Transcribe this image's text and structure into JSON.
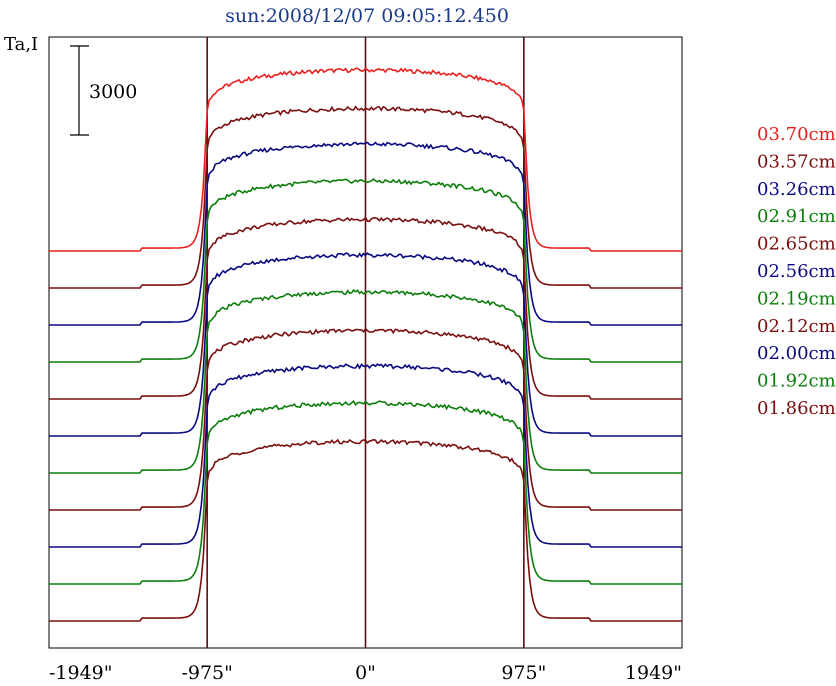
{
  "chart_data": {
    "type": "line",
    "title": "sun:2008/12/07 09:05:12.450",
    "ylabel": "Ta,I",
    "scale_bar_label": "3000",
    "x_tick_labels": [
      "-1949\"",
      "-975\"",
      "0\"",
      "975\"",
      "1949\""
    ],
    "x_ticks": [
      -1949,
      -975,
      0,
      975,
      1949
    ],
    "xlim": [
      -1949,
      1949
    ],
    "vertical_lines_at": [
      -975,
      0,
      975
    ],
    "limb_arcsec": 975,
    "scale_bar_value": 3000,
    "series": [
      {
        "name": "03.70cm",
        "color": "#e8201e",
        "disk_amplitude": 6100
      },
      {
        "name": "03.57cm",
        "color": "#7a0f0f",
        "disk_amplitude": 6050
      },
      {
        "name": "03.26cm",
        "color": "#0a0a80",
        "disk_amplitude": 6100
      },
      {
        "name": "02.91cm",
        "color": "#0c7e0c",
        "disk_amplitude": 6100
      },
      {
        "name": "02.65cm",
        "color": "#7a0f0f",
        "disk_amplitude": 6050
      },
      {
        "name": "02.56cm",
        "color": "#0a0a80",
        "disk_amplitude": 6100
      },
      {
        "name": "02.19cm",
        "color": "#0c7e0c",
        "disk_amplitude": 6100
      },
      {
        "name": "02.12cm",
        "color": "#7a0f0f",
        "disk_amplitude": 6050
      },
      {
        "name": "02.00cm",
        "color": "#0a0a80",
        "disk_amplitude": 6100
      },
      {
        "name": "01.92cm",
        "color": "#0c7e0c",
        "disk_amplitude": 6100
      },
      {
        "name": "01.86cm",
        "color": "#7a0f0f",
        "disk_amplitude": 6050
      }
    ],
    "grid": false,
    "legend_position": "right"
  }
}
